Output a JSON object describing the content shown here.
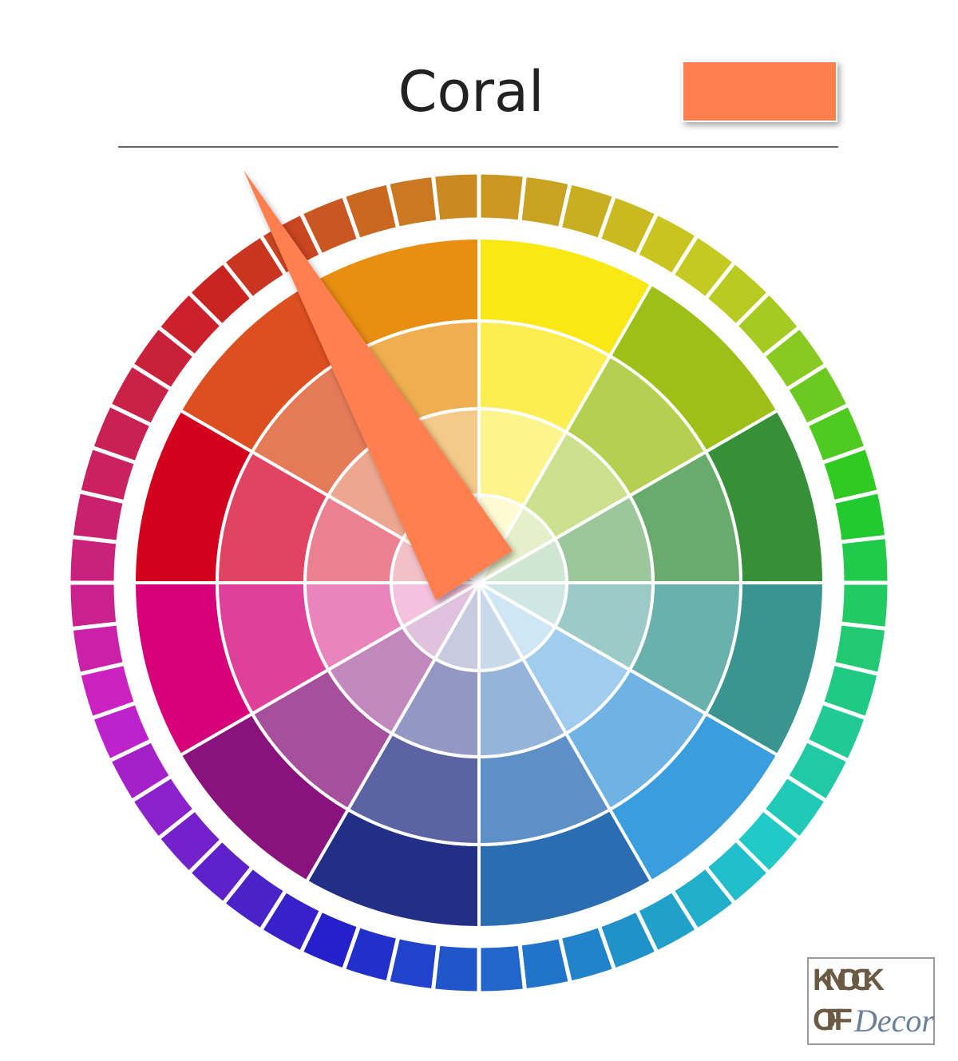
{
  "title": "Coral",
  "logo": {
    "line1": "KNOCK",
    "line2": "OFF",
    "script": "Decor"
  }
}
